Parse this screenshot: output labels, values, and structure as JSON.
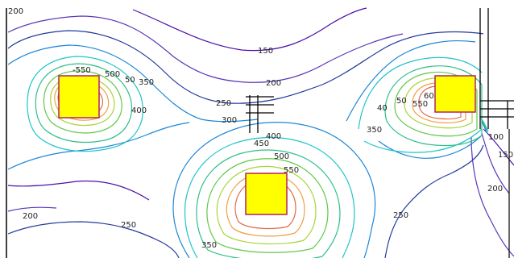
{
  "contour_levels": [
    {
      "value": 150,
      "color": "#4b0fa8"
    },
    {
      "value": 200,
      "color": "#5a36b8"
    },
    {
      "value": 250,
      "color": "#233a9a"
    },
    {
      "value": 300,
      "color": "#1d86d6"
    },
    {
      "value": 350,
      "color": "#1fc5c9"
    },
    {
      "value": 400,
      "color": "#2dbf8a"
    },
    {
      "value": 450,
      "color": "#61c84a"
    },
    {
      "value": 500,
      "color": "#a8d43a"
    },
    {
      "value": 550,
      "color": "#f0a040"
    },
    {
      "value": 600,
      "color": "#e06b45"
    }
  ],
  "labels": [
    {
      "text": "200"
    },
    {
      "text": "-550"
    },
    {
      "text": "500"
    },
    {
      "text": "50"
    },
    {
      "text": "350"
    },
    {
      "text": "400"
    },
    {
      "text": "150"
    },
    {
      "text": "200"
    },
    {
      "text": "250"
    },
    {
      "text": "300"
    },
    {
      "text": "400"
    },
    {
      "text": "450"
    },
    {
      "text": "500"
    },
    {
      "text": "550"
    },
    {
      "text": "40"
    },
    {
      "text": "50"
    },
    {
      "text": "550"
    },
    {
      "text": "60"
    },
    {
      "text": "350"
    },
    {
      "text": "100"
    },
    {
      "text": "150"
    },
    {
      "text": "200"
    },
    {
      "text": "250"
    },
    {
      "text": "200"
    },
    {
      "text": "250"
    },
    {
      "text": "350"
    }
  ],
  "sources": [
    {
      "name": "left-source",
      "fill": "#ffff00",
      "stroke": "#b2225d"
    },
    {
      "name": "center-source",
      "fill": "#ffff00",
      "stroke": "#b2225d"
    },
    {
      "name": "right-source",
      "fill": "#ffff00",
      "stroke": "#b2225d"
    }
  ]
}
